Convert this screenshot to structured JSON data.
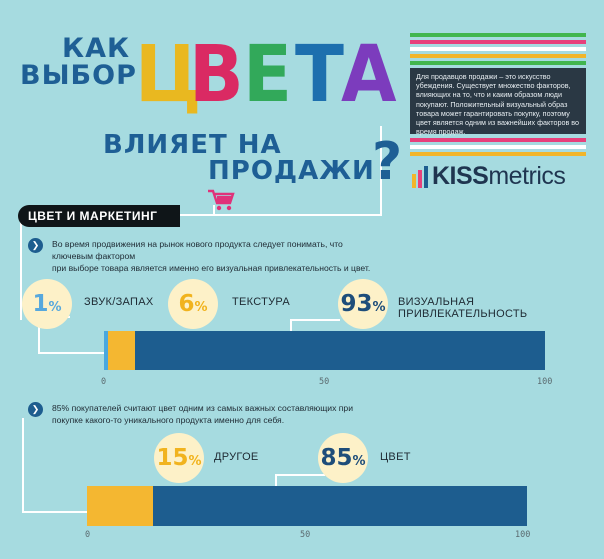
{
  "title": {
    "kak": "КАК",
    "vybor": "ВЫБОР",
    "tsveta_letters": [
      {
        "ch": "Ц",
        "color": "#e9b820"
      },
      {
        "ch": "В",
        "color": "#da2a63"
      },
      {
        "ch": "Е",
        "color": "#32a95a"
      },
      {
        "ch": "Т",
        "color": "#1d6fae"
      },
      {
        "ch": "А",
        "color": "#7c3cbd"
      }
    ],
    "vliyaet": "ВЛИЯЕТ НА",
    "prodazhi": "ПРОДАЖИ",
    "question": "?"
  },
  "intro": {
    "text": "Для продавцов продажи – это искусство убеждения. Существует множество факторов, влияющих на то, что и каким образом люди покупают. Положительный визуальный образ товара может гарантировать покупку, поэтому цвет является одним из важнейших факторов во время продаж."
  },
  "logo": {
    "kiss": "KISS",
    "metrics": "metrics"
  },
  "section": {
    "title": "ЦВЕТ И МАРКЕТИНГ"
  },
  "block1": {
    "text_line1": "Во время продвижения на рынок нового продукта следует понимать, что ключевым фактором",
    "text_line2": "при выборе товара является именно его визуальная привлекательность и цвет.",
    "items": [
      {
        "num": "1",
        "pct": "%",
        "label": "ЗВУК/ЗАПАХ"
      },
      {
        "num": "6",
        "pct": "%",
        "label": "ТЕКСТУРА"
      },
      {
        "num": "93",
        "pct": "%",
        "label": "ВИЗУАЛЬНАЯ ПРИВЛЕКАТЕЛЬНОСТЬ"
      }
    ],
    "bar": {
      "segments": [
        {
          "value": 1,
          "color": "#4aa8df"
        },
        {
          "value": 6,
          "color": "#f4b731"
        },
        {
          "value": 93,
          "color": "#1d5d8f"
        }
      ]
    },
    "ticks": [
      "0",
      "50",
      "100"
    ]
  },
  "block2": {
    "text_line1": "85% покупателей считают цвет одним из самых важных составляющих при",
    "text_line2": "покупке какого-то уникального продукта именно для себя.",
    "items": [
      {
        "num": "15",
        "pct": "%",
        "label": "ДРУГОЕ"
      },
      {
        "num": "85",
        "pct": "%",
        "label": "ЦВЕТ"
      }
    ],
    "bar": {
      "segments": [
        {
          "value": 15,
          "color": "#f4b731"
        },
        {
          "value": 85,
          "color": "#1d5d8f"
        }
      ]
    },
    "ticks": [
      "0",
      "50",
      "100"
    ]
  },
  "colors": {
    "stripe_green": "#41b64e",
    "stripe_pink": "#e7407b",
    "stripe_white": "#ffffff",
    "stripe_yellow": "#f2b52a",
    "cart": "#e0327a"
  },
  "icons": [
    "cart-icon",
    "chevron-right-icon",
    "kissmetrics-logo-icon"
  ]
}
